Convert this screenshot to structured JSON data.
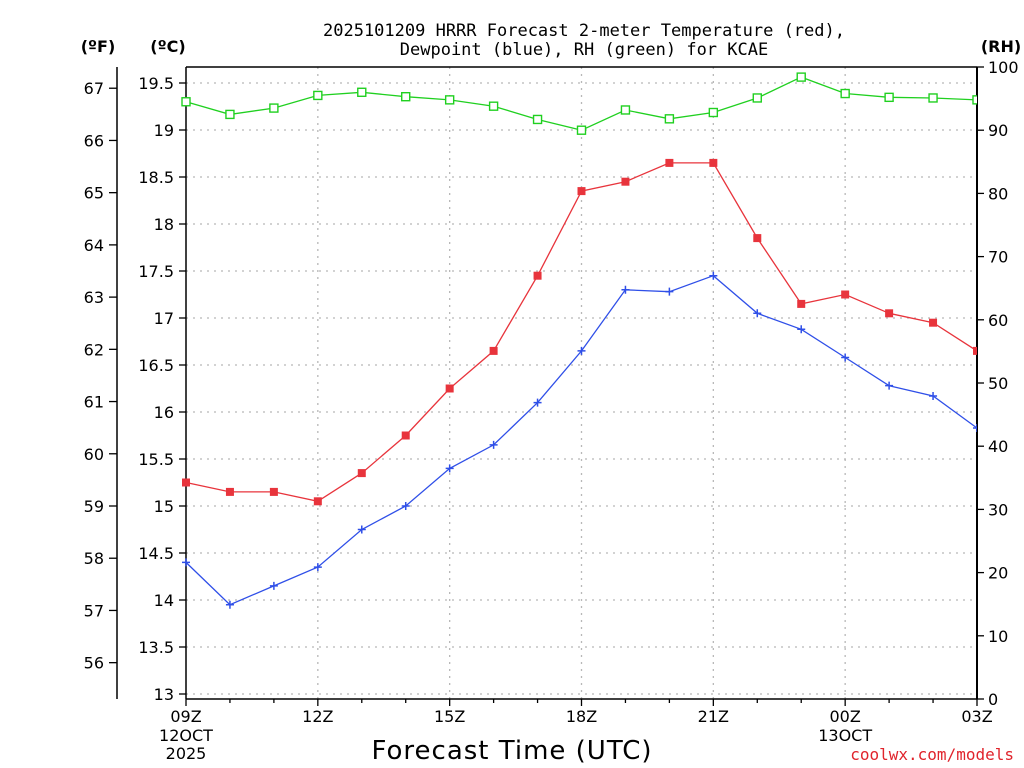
{
  "chart_data": {
    "type": "line",
    "title": [
      "2025101209 HRRR Forecast 2-meter Temperature (red),",
      "Dewpoint (blue), RH (green) for KCAE"
    ],
    "xlabel": "Forecast Time (UTC)",
    "units": {
      "fahrenheit": "(ºF)",
      "celsius": "(ºC)",
      "rh": "(RH)"
    },
    "x_hours": [
      0,
      1,
      2,
      3,
      4,
      5,
      6,
      7,
      8,
      9,
      10,
      11,
      12,
      13,
      14,
      15,
      16,
      17,
      18
    ],
    "xlim": [
      0,
      18
    ],
    "x_ticks": [
      {
        "hour": 0,
        "label": "09Z",
        "sub1": "12OCT",
        "sub2": "2025"
      },
      {
        "hour": 3,
        "label": "12Z",
        "sub1": "",
        "sub2": ""
      },
      {
        "hour": 6,
        "label": "15Z",
        "sub1": "",
        "sub2": ""
      },
      {
        "hour": 9,
        "label": "18Z",
        "sub1": "",
        "sub2": ""
      },
      {
        "hour": 12,
        "label": "21Z",
        "sub1": "",
        "sub2": ""
      },
      {
        "hour": 15,
        "label": "00Z",
        "sub1": "13OCT",
        "sub2": ""
      },
      {
        "hour": 18,
        "label": "03Z",
        "sub1": "",
        "sub2": ""
      }
    ],
    "ylim_c": [
      13,
      19.75
    ],
    "yticks_c": [
      13,
      13.5,
      14,
      14.5,
      15,
      15.5,
      16,
      16.5,
      17,
      17.5,
      18,
      18.5,
      19,
      19.5
    ],
    "ytick_labels_c": [
      "13",
      "13.5",
      "14",
      "14.5",
      "15",
      "15.5",
      "16",
      "16.5",
      "17",
      "17.5",
      "18",
      "18.5",
      "19",
      "19.5"
    ],
    "yticks_f": [
      56,
      57,
      58,
      59,
      60,
      61,
      62,
      63,
      64,
      65,
      66,
      67
    ],
    "ytick_labels_f": [
      "56",
      "57",
      "58",
      "59",
      "60",
      "61",
      "62",
      "63",
      "64",
      "65",
      "66",
      "67"
    ],
    "ylim_rh": [
      0,
      100
    ],
    "yticks_rh": [
      0,
      10,
      20,
      30,
      40,
      50,
      60,
      70,
      80,
      90,
      100
    ],
    "ytick_labels_rh": [
      "0",
      "10",
      "20",
      "30",
      "40",
      "50",
      "60",
      "70",
      "80",
      "90",
      "100"
    ],
    "series": [
      {
        "name": "Temperature",
        "axis": "c",
        "color": "#e8343c",
        "marker": "square-filled",
        "values": [
          15.25,
          15.15,
          15.15,
          15.05,
          15.35,
          15.75,
          16.25,
          16.65,
          17.45,
          18.35,
          18.45,
          18.65,
          18.65,
          17.85,
          17.15,
          17.25,
          17.05,
          16.95,
          16.65
        ]
      },
      {
        "name": "Dewpoint",
        "axis": "c",
        "color": "#2f4fe8",
        "marker": "plus",
        "values": [
          14.4,
          13.95,
          14.15,
          14.35,
          14.75,
          15.0,
          15.4,
          15.65,
          16.1,
          16.65,
          17.3,
          17.28,
          17.45,
          17.05,
          16.88,
          16.58,
          16.28,
          16.17,
          15.83
        ]
      },
      {
        "name": "RH",
        "axis": "rh",
        "color": "#20d020",
        "marker": "square-open",
        "values": [
          94.5,
          92.5,
          93.5,
          95.5,
          96.0,
          95.3,
          94.8,
          93.8,
          91.7,
          90.0,
          93.2,
          91.8,
          92.8,
          95.1,
          98.4,
          95.8,
          95.2,
          95.1,
          94.8
        ]
      }
    ],
    "credit": "coolwx.com/models"
  },
  "colors": {
    "background": "#ffffff",
    "grid": "#b8b8b8",
    "credit": "#e0242c"
  }
}
